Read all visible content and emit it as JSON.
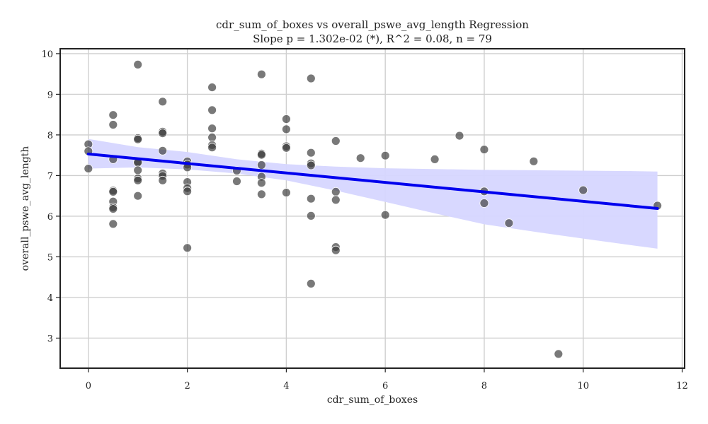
{
  "chart_data": {
    "type": "scatter",
    "title": "cdr_sum_of_boxes vs overall_pswe_avg_length Regression",
    "subtitle": "Slope p = 1.302e-02 (*), R^2 = 0.08, n = 79",
    "xlabel": "cdr_sum_of_boxes",
    "ylabel": "overall_pswe_avg_length",
    "xlim": [
      -0.57,
      12.05
    ],
    "ylim": [
      2.26,
      10.12
    ],
    "xticks": [
      0,
      2,
      4,
      6,
      8,
      10,
      12
    ],
    "yticks": [
      3,
      4,
      5,
      6,
      7,
      8,
      9,
      10
    ],
    "grid": true,
    "colors": {
      "points": "#3a3a3a",
      "line": "#0000ee",
      "band": "#d6d6ff"
    },
    "points": [
      [
        0,
        7.77
      ],
      [
        0,
        7.6
      ],
      [
        0,
        7.17
      ],
      [
        0.5,
        8.49
      ],
      [
        0.5,
        8.25
      ],
      [
        0.5,
        7.4
      ],
      [
        0.5,
        6.63
      ],
      [
        0.5,
        6.6
      ],
      [
        0.5,
        6.36
      ],
      [
        0.5,
        6.22
      ],
      [
        0.5,
        6.18
      ],
      [
        0.5,
        5.81
      ],
      [
        1,
        9.73
      ],
      [
        1,
        7.92
      ],
      [
        1,
        7.89
      ],
      [
        1,
        7.34
      ],
      [
        1,
        7.32
      ],
      [
        1,
        7.13
      ],
      [
        1,
        6.93
      ],
      [
        1,
        6.88
      ],
      [
        1,
        6.5
      ],
      [
        1.5,
        8.82
      ],
      [
        1.5,
        8.08
      ],
      [
        1.5,
        8.04
      ],
      [
        1.5,
        7.61
      ],
      [
        1.5,
        7.05
      ],
      [
        1.5,
        6.99
      ],
      [
        1.5,
        6.88
      ],
      [
        2,
        7.35
      ],
      [
        2,
        7.27
      ],
      [
        2,
        7.2
      ],
      [
        2,
        6.84
      ],
      [
        2,
        6.69
      ],
      [
        2,
        6.61
      ],
      [
        2,
        5.22
      ],
      [
        2.5,
        9.17
      ],
      [
        2.5,
        8.61
      ],
      [
        2.5,
        8.16
      ],
      [
        2.5,
        7.94
      ],
      [
        2.5,
        7.75
      ],
      [
        2.5,
        7.69
      ],
      [
        3,
        7.12
      ],
      [
        3,
        6.86
      ],
      [
        3.5,
        9.49
      ],
      [
        3.5,
        7.54
      ],
      [
        3.5,
        7.51
      ],
      [
        3.5,
        7.26
      ],
      [
        3.5,
        6.97
      ],
      [
        3.5,
        6.82
      ],
      [
        3.5,
        6.54
      ],
      [
        4,
        8.39
      ],
      [
        4,
        8.14
      ],
      [
        4,
        7.72
      ],
      [
        4,
        7.68
      ],
      [
        4,
        6.58
      ],
      [
        4.5,
        9.39
      ],
      [
        4.5,
        7.56
      ],
      [
        4.5,
        7.3
      ],
      [
        4.5,
        7.25
      ],
      [
        4.5,
        6.43
      ],
      [
        4.5,
        6.01
      ],
      [
        4.5,
        4.34
      ],
      [
        5,
        7.85
      ],
      [
        5,
        6.6
      ],
      [
        5,
        6.4
      ],
      [
        5,
        5.24
      ],
      [
        5,
        5.16
      ],
      [
        5.5,
        7.43
      ],
      [
        6,
        7.49
      ],
      [
        6,
        6.03
      ],
      [
        7,
        7.4
      ],
      [
        7.5,
        7.98
      ],
      [
        8,
        7.64
      ],
      [
        8,
        6.61
      ],
      [
        8,
        6.32
      ],
      [
        8.5,
        5.83
      ],
      [
        9,
        7.35
      ],
      [
        9.5,
        2.61
      ],
      [
        10,
        6.64
      ],
      [
        11.5,
        6.26
      ]
    ],
    "regression": {
      "x": [
        0,
        11.5
      ],
      "y": [
        7.53,
        6.19
      ]
    },
    "ci_band": {
      "x": [
        0,
        1,
        2,
        3,
        4,
        5,
        6,
        7,
        8,
        9,
        10,
        11,
        11.5
      ],
      "lower": [
        7.17,
        7.2,
        7.15,
        7.05,
        6.88,
        6.63,
        6.35,
        6.07,
        5.8,
        5.62,
        5.45,
        5.28,
        5.2
      ],
      "upper": [
        7.9,
        7.7,
        7.58,
        7.4,
        7.28,
        7.22,
        7.18,
        7.16,
        7.14,
        7.13,
        7.12,
        7.11,
        7.1
      ]
    }
  }
}
